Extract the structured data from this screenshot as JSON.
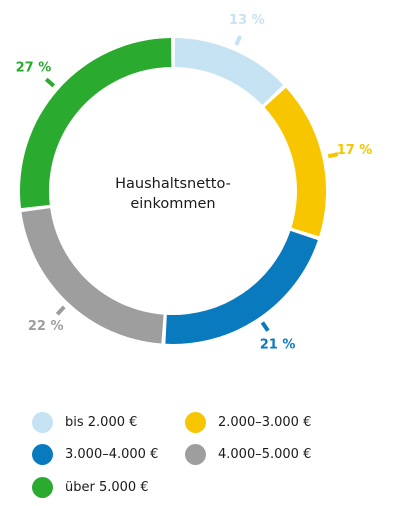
{
  "chart_data": {
    "type": "pie",
    "variant": "donut",
    "title": "",
    "center_label": [
      "Haushaltsnetto-",
      "einkommen"
    ],
    "categories": [
      "bis 2.000 €",
      "2.000–3.000 €",
      "3.000–4.000 €",
      "4.000–5.000 €",
      "über 5.000 €"
    ],
    "values": [
      13,
      17,
      21,
      22,
      27
    ],
    "value_labels": [
      "13 %",
      "17 %",
      "21 %",
      "22 %",
      "27 %"
    ],
    "unit": "%",
    "colors": [
      "#c6e3f3",
      "#f7c600",
      "#0a7abf",
      "#9e9e9e",
      "#2aaa2e"
    ],
    "start_angle_deg": 0,
    "direction": "clockwise",
    "legend_position": "bottom"
  }
}
